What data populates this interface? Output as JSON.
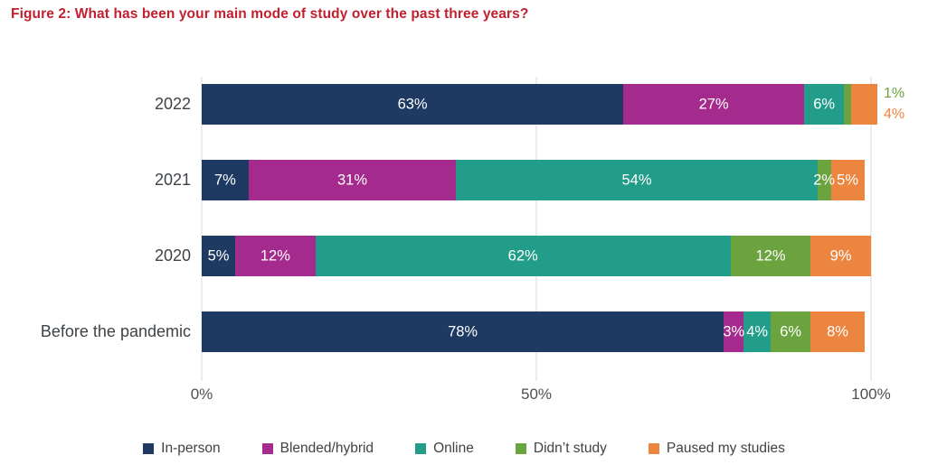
{
  "title": {
    "text": "Figure 2: What has been your main mode of study over the past three years?",
    "color": "#c2202f"
  },
  "chart_data": {
    "type": "bar",
    "variant": "horizontal-stacked",
    "title": "Figure 2: What has been your main mode of study over the past three years?",
    "categories": [
      "2022",
      "2021",
      "2020",
      "Before the pandemic"
    ],
    "series": [
      {
        "name": "In-person",
        "color": "#1e3a63",
        "values": [
          63,
          7,
          5,
          78
        ]
      },
      {
        "name": "Blended/hybrid",
        "color": "#a42b8d",
        "values": [
          27,
          31,
          12,
          3
        ]
      },
      {
        "name": "Online",
        "color": "#229d8a",
        "values": [
          6,
          54,
          62,
          4
        ]
      },
      {
        "name": "Didn’t study",
        "color": "#6ba33f",
        "values": [
          1,
          2,
          12,
          6
        ]
      },
      {
        "name": "Paused my studies",
        "color": "#ec8540",
        "values": [
          4,
          5,
          9,
          8
        ]
      }
    ],
    "value_label_suffix": "%",
    "value_label_color_inside": "#ffffff",
    "x_ticks": [
      {
        "label": "0%",
        "value": 0
      },
      {
        "label": "50%",
        "value": 50
      },
      {
        "label": "100%",
        "value": 100
      }
    ],
    "xlim": [
      0,
      100
    ],
    "grid": "vertical",
    "gridline_color": "#d9d9d9",
    "legend_position": "bottom",
    "label_layout": [
      {
        "category": "2022",
        "series": "Didn’t study",
        "placement": "outside"
      },
      {
        "category": "2022",
        "series": "Paused my studies",
        "placement": "outside"
      }
    ]
  }
}
